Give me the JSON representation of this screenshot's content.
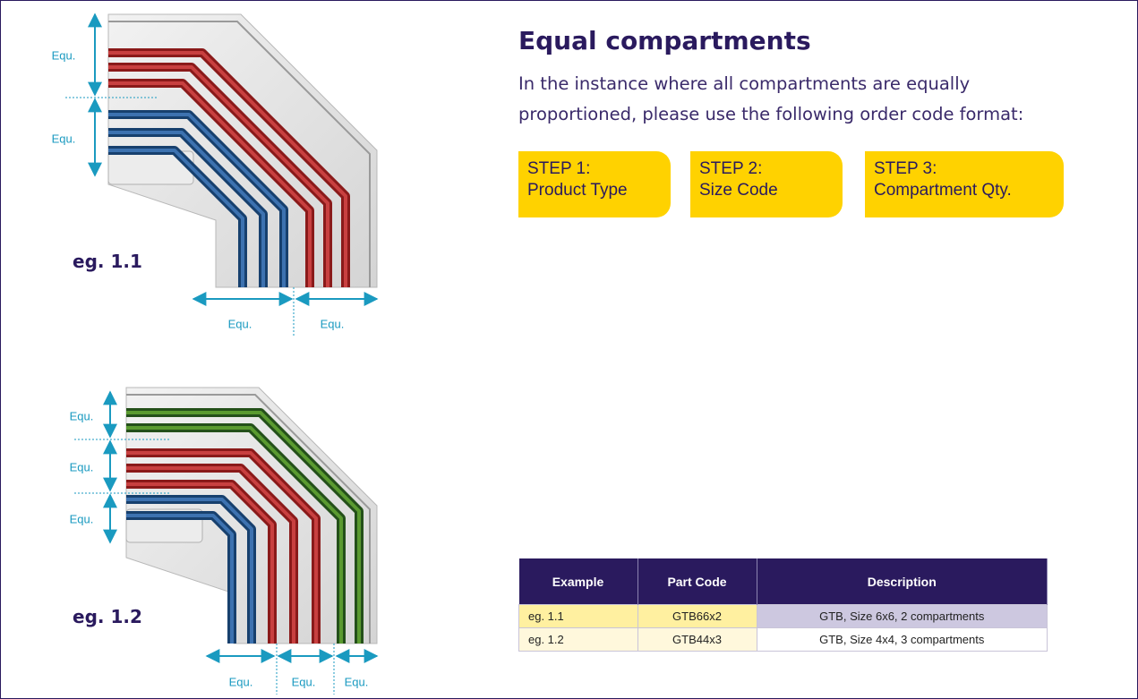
{
  "title": "Equal compartments",
  "intro": "In the instance where all compartments are equally proportioned, please use the following order code format:",
  "steps": [
    {
      "label": "STEP 1:",
      "name": "Product Type"
    },
    {
      "label": "STEP 2:",
      "name": "Size Code"
    },
    {
      "label": "STEP 3:",
      "name": "Compartment Qty."
    }
  ],
  "figures": [
    {
      "label": "eg. 1.1",
      "dimensions": [
        "Equ.",
        "Equ.",
        "Equ.",
        "Equ."
      ]
    },
    {
      "label": "eg. 1.2",
      "dimensions": [
        "Equ.",
        "Equ.",
        "Equ.",
        "Equ.",
        "Equ.",
        "Equ."
      ]
    }
  ],
  "table": {
    "header": [
      "Example",
      "Part Code",
      "Description"
    ],
    "rows": [
      [
        "eg. 1.1",
        "GTB66x2",
        "GTB, Size 6x6, 2 compartments"
      ],
      [
        "eg. 1.2",
        "GTB44x3",
        "GTB, Size 4x4, 3 compartments"
      ]
    ]
  }
}
